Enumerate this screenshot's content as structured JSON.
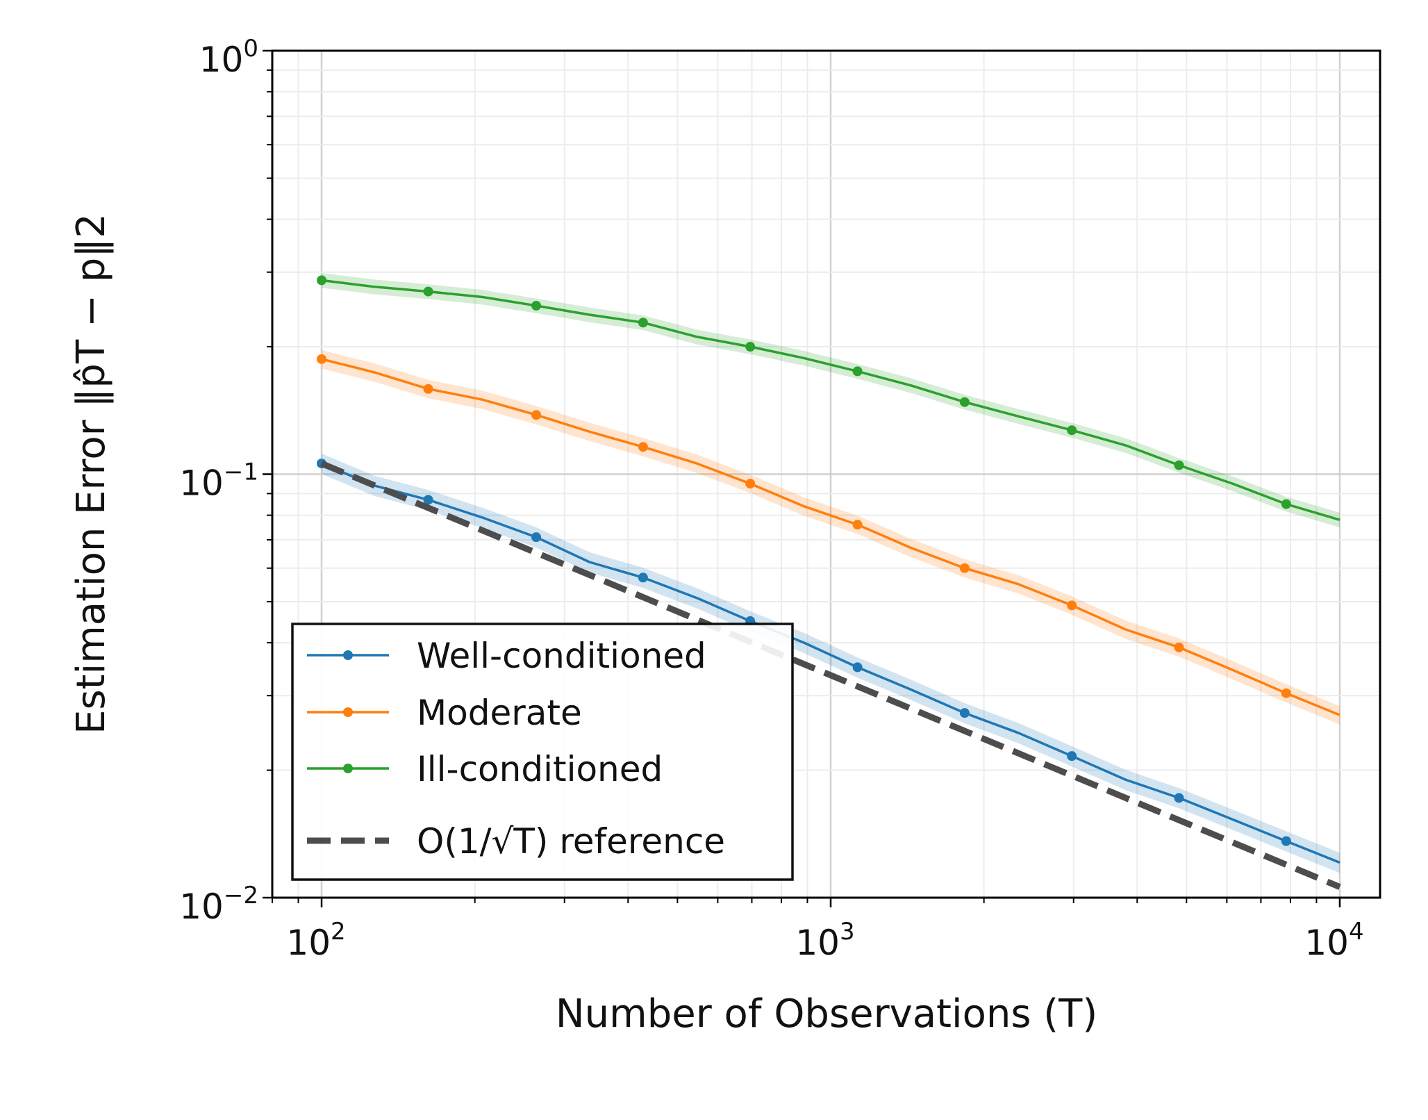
{
  "chart_data": {
    "type": "line",
    "xscale": "log",
    "yscale": "log",
    "xlim": [
      80,
      12000
    ],
    "ylim": [
      0.01,
      1
    ],
    "grid": true,
    "legend_position": "lower-left",
    "xlabel": "Number of Observations (T)",
    "ylabel": "Estimation Error ‖p̂T − p‖2",
    "x_ticks": [
      {
        "value": 100,
        "base": "10",
        "exp": "2"
      },
      {
        "value": 1000,
        "base": "10",
        "exp": "3"
      },
      {
        "value": 10000,
        "base": "10",
        "exp": "4"
      }
    ],
    "y_ticks": [
      {
        "value": 0.01,
        "base": "10",
        "exp": "−2"
      },
      {
        "value": 0.1,
        "base": "10",
        "exp": "−1"
      },
      {
        "value": 1,
        "base": "10",
        "exp": "0"
      }
    ],
    "x": [
      100,
      127,
      162,
      207,
      264,
      336,
      428,
      546,
      695,
      886,
      1129,
      1438,
      1833,
      2336,
      2976,
      3793,
      4833,
      6158,
      7848,
      10000
    ],
    "marker_indices": [
      0,
      2,
      4,
      6,
      8,
      10,
      12,
      14,
      16,
      18
    ],
    "series": [
      {
        "name": "Well-conditioned",
        "color": "#1f77b4",
        "values": [
          0.106,
          0.094,
          0.087,
          0.079,
          0.071,
          0.062,
          0.057,
          0.051,
          0.045,
          0.04,
          0.035,
          0.031,
          0.0273,
          0.0245,
          0.0216,
          0.019,
          0.0172,
          0.0153,
          0.0136,
          0.0121
        ],
        "band": 0.055
      },
      {
        "name": "Moderate",
        "color": "#ff7f0e",
        "values": [
          0.187,
          0.174,
          0.159,
          0.15,
          0.138,
          0.126,
          0.116,
          0.106,
          0.095,
          0.084,
          0.076,
          0.067,
          0.06,
          0.055,
          0.049,
          0.043,
          0.039,
          0.0345,
          0.0304,
          0.027
        ],
        "band": 0.05
      },
      {
        "name": "Ill-conditioned",
        "color": "#2ca02c",
        "values": [
          0.287,
          0.277,
          0.27,
          0.262,
          0.25,
          0.238,
          0.228,
          0.211,
          0.2,
          0.188,
          0.175,
          0.162,
          0.148,
          0.137,
          0.127,
          0.117,
          0.105,
          0.095,
          0.085,
          0.078
        ],
        "band": 0.04
      },
      {
        "name": "O(1/√T) reference",
        "color": "#4d4d4d",
        "style": "dashed",
        "x": [
          100,
          10000
        ],
        "values": [
          0.106,
          0.0106
        ]
      }
    ]
  }
}
